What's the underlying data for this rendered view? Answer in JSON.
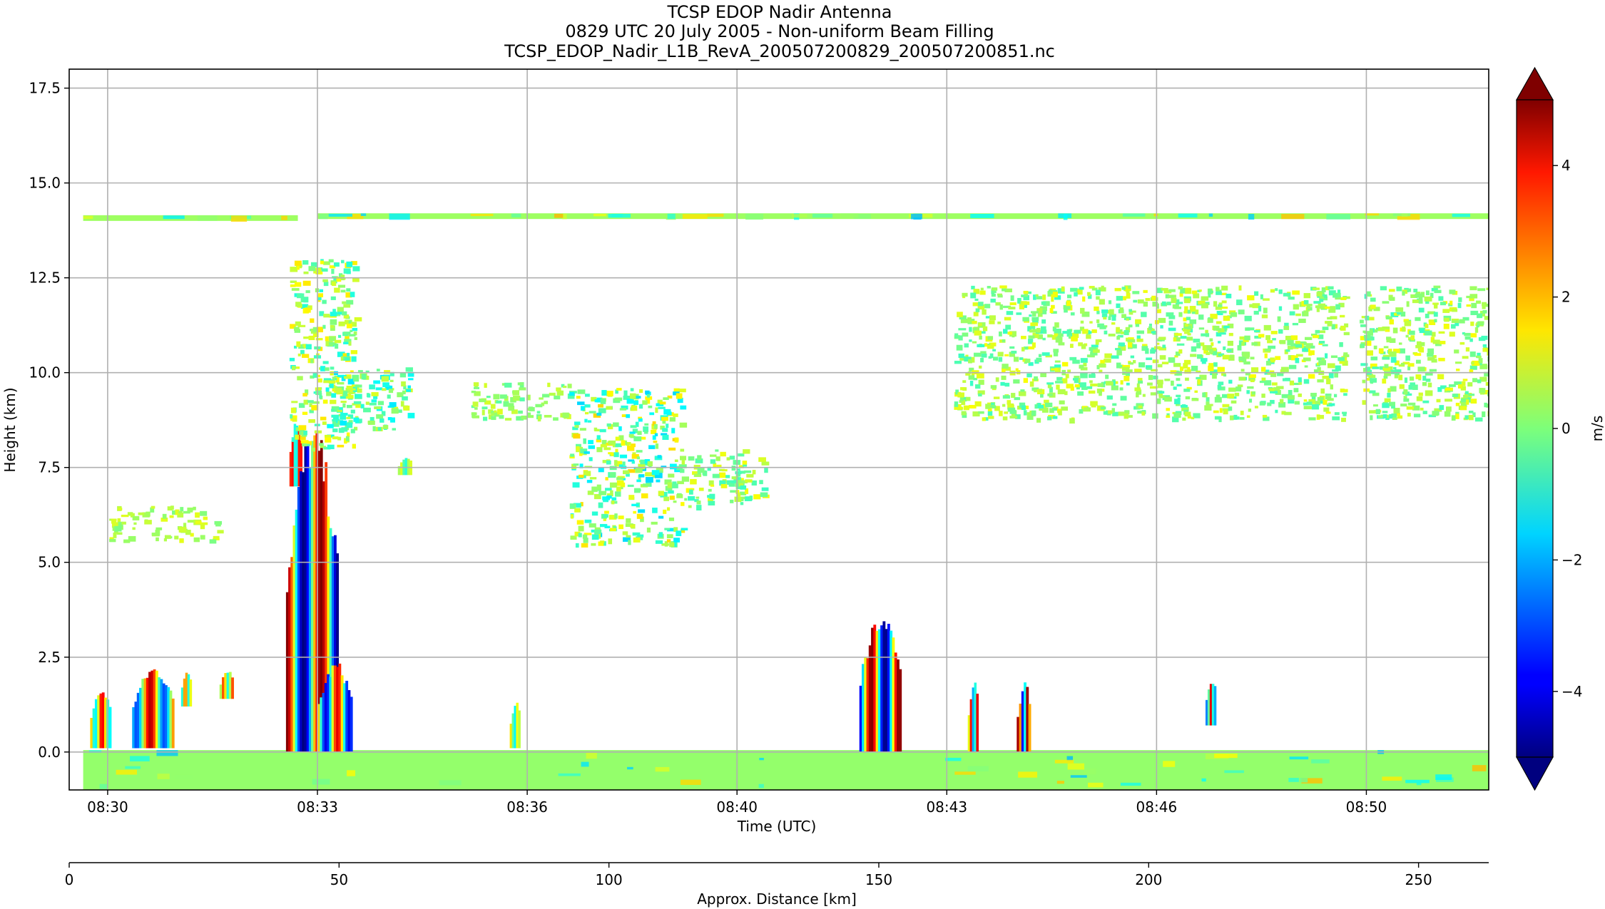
{
  "chart_data": {
    "type": "heatmap",
    "title_lines": [
      "TCSP EDOP Nadir Antenna",
      "0829 UTC 20 July 2005 - Non-uniform Beam Filling",
      "TCSP_EDOP_Nadir_L1B_RevA_200507200829_200507200851.nc"
    ],
    "xlabel": "Time (UTC)",
    "ylabel": "Height (km)",
    "ylim": [
      -1,
      18
    ],
    "grid": true,
    "x_ticks": [
      {
        "pos": 30,
        "label": "08:30"
      },
      {
        "pos": 33,
        "label": "08:33"
      },
      {
        "pos": 36,
        "label": "08:36"
      },
      {
        "pos": 39,
        "label": "08:40"
      },
      {
        "pos": 42,
        "label": "08:43"
      },
      {
        "pos": 45,
        "label": "08:46"
      },
      {
        "pos": 48,
        "label": "08:50"
      }
    ],
    "xlim": [
      29.45,
      49.75
    ],
    "y_ticks": [
      {
        "value": 0,
        "label": "0.0"
      },
      {
        "value": 2.5,
        "label": "2.5"
      },
      {
        "value": 5,
        "label": "5.0"
      },
      {
        "value": 7.5,
        "label": "7.5"
      },
      {
        "value": 10,
        "label": "10.0"
      },
      {
        "value": 12.5,
        "label": "12.5"
      },
      {
        "value": 15,
        "label": "15.0"
      },
      {
        "value": 17.5,
        "label": "17.5"
      }
    ],
    "secondary_axis": {
      "label": "Approx. Distance [km]",
      "xlim": [
        0,
        263
      ],
      "ticks": [
        {
          "value": 0,
          "label": "0"
        },
        {
          "value": 50,
          "label": "50"
        },
        {
          "value": 100,
          "label": "100"
        },
        {
          "value": 150,
          "label": "150"
        },
        {
          "value": 200,
          "label": "200"
        },
        {
          "value": 250,
          "label": "250"
        }
      ]
    },
    "colorbar": {
      "label": "m/s",
      "range": [
        -5,
        5
      ],
      "extend": "both",
      "colormap": "jet",
      "ticks": [
        {
          "value": -4,
          "label": "−4"
        },
        {
          "value": -2,
          "label": "−2"
        },
        {
          "value": 0,
          "label": "0"
        },
        {
          "value": 2,
          "label": "2"
        },
        {
          "value": 4,
          "label": "4"
        }
      ]
    },
    "features": [
      {
        "kind": "band",
        "x": [
          29.65,
          32.72
        ],
        "y": [
          14.0,
          14.15
        ],
        "value": 0.3
      },
      {
        "kind": "band",
        "x": [
          33.0,
          49.75
        ],
        "y": [
          14.05,
          14.2
        ],
        "value": 0.3
      },
      {
        "kind": "band",
        "x": [
          29.65,
          49.75
        ],
        "y": [
          -1.0,
          0.05
        ],
        "value": 0.2
      },
      {
        "kind": "cell",
        "x": [
          29.75,
          30.05
        ],
        "y": [
          0.1,
          1.7
        ],
        "vmin": -1.5,
        "vmax": 4
      },
      {
        "kind": "cell",
        "x": [
          30.35,
          30.95
        ],
        "y": [
          0.1,
          2.3
        ],
        "vmin": -3,
        "vmax": 4.5
      },
      {
        "kind": "cell",
        "x": [
          31.05,
          31.2
        ],
        "y": [
          1.2,
          2.2
        ],
        "vmin": -1,
        "vmax": 3
      },
      {
        "kind": "cell",
        "x": [
          31.6,
          31.8
        ],
        "y": [
          1.4,
          2.2
        ],
        "vmin": -1,
        "vmax": 3
      },
      {
        "kind": "cell",
        "x": [
          32.6,
          32.78
        ],
        "y": [
          7.0,
          8.8
        ],
        "vmin": -2,
        "vmax": 4.5
      },
      {
        "kind": "cell",
        "x": [
          32.55,
          33.3
        ],
        "y": [
          0.0,
          8.7
        ],
        "vmin": -5,
        "vmax": 5
      },
      {
        "kind": "cell",
        "x": [
          33.0,
          33.5
        ],
        "y": [
          0.0,
          2.4
        ],
        "vmin": -4,
        "vmax": 4
      },
      {
        "kind": "cloud",
        "x": [
          32.6,
          33.55
        ],
        "y": [
          8.0,
          13.0
        ],
        "vmin": -2,
        "vmax": 2.5
      },
      {
        "kind": "cloud",
        "x": [
          33.1,
          34.3
        ],
        "y": [
          8.5,
          10.2
        ],
        "vmin": -2.5,
        "vmax": 2
      },
      {
        "kind": "cloud",
        "x": [
          30.0,
          31.6
        ],
        "y": [
          5.6,
          6.5
        ],
        "vmin": -0.5,
        "vmax": 1.5
      },
      {
        "kind": "cell",
        "x": [
          34.15,
          34.35
        ],
        "y": [
          7.3,
          7.8
        ],
        "vmin": -1,
        "vmax": 1
      },
      {
        "kind": "cell",
        "x": [
          35.75,
          35.9
        ],
        "y": [
          0.1,
          1.4
        ],
        "vmin": -1.5,
        "vmax": 1.5
      },
      {
        "kind": "cloud",
        "x": [
          35.2,
          36.6
        ],
        "y": [
          8.8,
          9.8
        ],
        "vmin": -1,
        "vmax": 1.5
      },
      {
        "kind": "cloud",
        "x": [
          36.6,
          38.2
        ],
        "y": [
          5.5,
          9.6
        ],
        "vmin": -3,
        "vmax": 3
      },
      {
        "kind": "cloud",
        "x": [
          38.2,
          39.4
        ],
        "y": [
          6.5,
          8.0
        ],
        "vmin": -1.5,
        "vmax": 2
      },
      {
        "kind": "cell",
        "x": [
          40.75,
          41.35
        ],
        "y": [
          0.0,
          3.7
        ],
        "vmin": -5,
        "vmax": 5
      },
      {
        "kind": "cell",
        "x": [
          42.3,
          42.45
        ],
        "y": [
          0.0,
          2.0
        ],
        "vmin": -3,
        "vmax": 4
      },
      {
        "kind": "cell",
        "x": [
          43.0,
          43.2
        ],
        "y": [
          0.0,
          1.9
        ],
        "vmin": -4,
        "vmax": 5
      },
      {
        "kind": "cloud",
        "x": [
          42.1,
          47.7
        ],
        "y": [
          8.8,
          12.3
        ],
        "vmin": -1.5,
        "vmax": 2
      },
      {
        "kind": "cloud",
        "x": [
          47.9,
          49.75
        ],
        "y": [
          8.8,
          12.3
        ],
        "vmin": -1.5,
        "vmax": 2
      },
      {
        "kind": "cell",
        "x": [
          45.7,
          45.85
        ],
        "y": [
          0.7,
          2.0
        ],
        "vmin": -3,
        "vmax": 4
      }
    ]
  }
}
